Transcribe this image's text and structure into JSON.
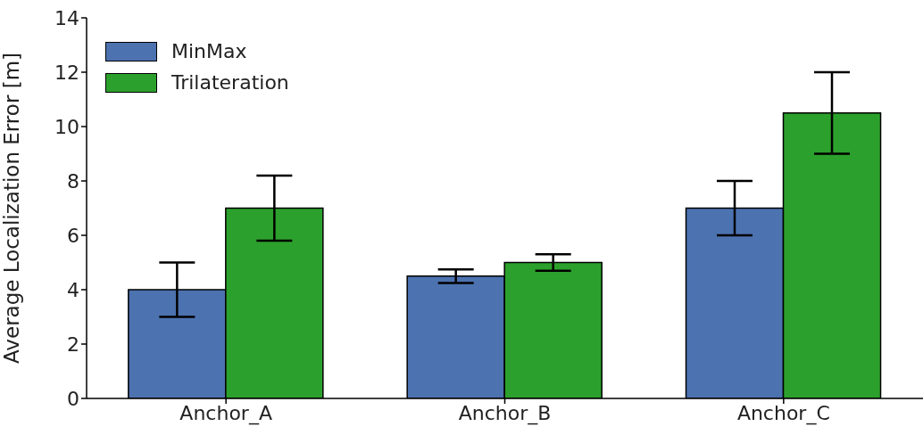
{
  "chart_data": {
    "type": "bar",
    "ylabel": "Average Localization Error [m]",
    "categories": [
      "Anchor_A",
      "Anchor_B",
      "Anchor_C"
    ],
    "series": [
      {
        "name": "MinMax",
        "color": "#4c72b0",
        "values": [
          4,
          4.5,
          7
        ],
        "errors": [
          1,
          0.25,
          1
        ]
      },
      {
        "name": "Trilateration",
        "color": "#2ca02c",
        "values": [
          7,
          5,
          10.5
        ],
        "errors": [
          1.2,
          0.3,
          1.5
        ]
      }
    ],
    "ylim": [
      0,
      14
    ],
    "yticks": [
      0,
      2,
      4,
      6,
      8,
      10,
      12,
      14
    ],
    "grid": false,
    "legend": "top left"
  }
}
